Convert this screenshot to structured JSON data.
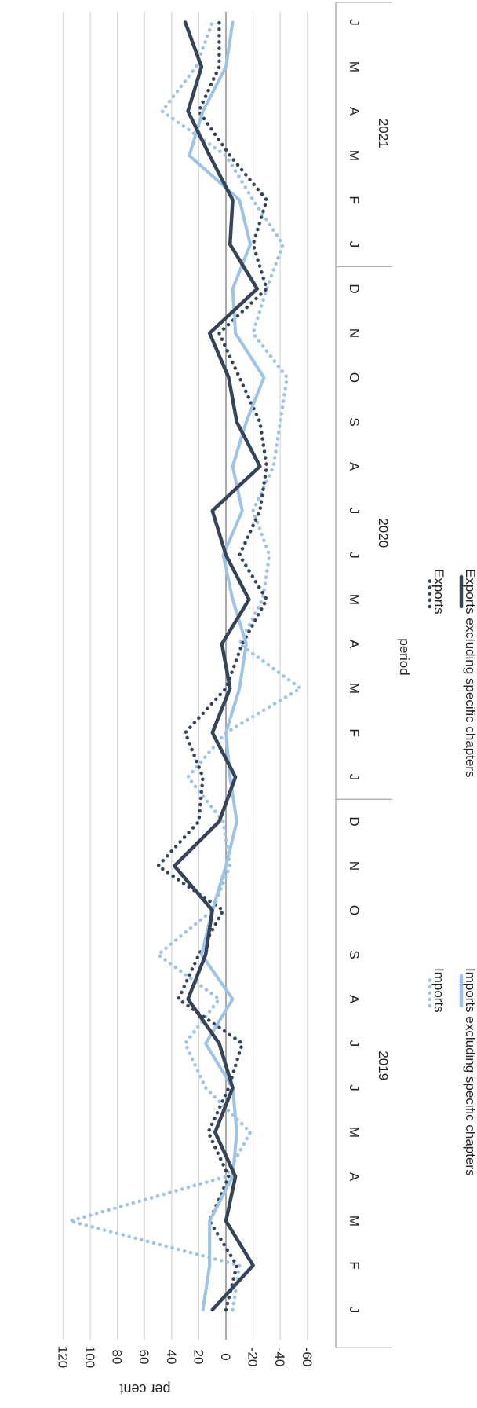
{
  "chart_data": {
    "type": "line",
    "orientation": "rotated-90-clockwise",
    "xlabel": "period",
    "ylabel": "per cent",
    "ylim": [
      -60,
      120
    ],
    "yticks": [
      -60,
      -40,
      -20,
      0,
      20,
      40,
      60,
      80,
      100,
      120
    ],
    "grid": true,
    "legend_position": "bottom",
    "months": [
      "J",
      "F",
      "M",
      "A",
      "M",
      "J",
      "J",
      "A",
      "S",
      "O",
      "N",
      "D",
      "J",
      "F",
      "M",
      "A",
      "M",
      "J",
      "J",
      "A",
      "S",
      "O",
      "N",
      "D",
      "J",
      "F",
      "M",
      "A",
      "M",
      "J"
    ],
    "years": [
      {
        "label": "2019",
        "start": 0,
        "end": 11
      },
      {
        "label": "2020",
        "start": 12,
        "end": 23
      },
      {
        "label": "2021",
        "start": 24,
        "end": 29
      }
    ],
    "series": [
      {
        "name": "Imports",
        "color": "#9dc3e6",
        "style": "dotted",
        "values": [
          -5,
          -10,
          115,
          0,
          -18,
          15,
          30,
          5,
          50,
          10,
          -3,
          2,
          28,
          0,
          -55,
          -10,
          -27,
          -32,
          -20,
          -35,
          -40,
          -45,
          -20,
          -30,
          -42,
          -20,
          0,
          47,
          22,
          10
        ]
      },
      {
        "name": "Exports",
        "color": "#354458",
        "style": "dotted",
        "values": [
          0,
          -8,
          12,
          -2,
          13,
          -2,
          -12,
          35,
          20,
          2,
          50,
          20,
          17,
          30,
          0,
          -12,
          -30,
          -10,
          -25,
          -30,
          -25,
          -10,
          5,
          -30,
          -20,
          -30,
          -3,
          20,
          5,
          5
        ]
      },
      {
        "name": "Imports excluding specific chapters",
        "color": "#9dc3e6",
        "style": "solid",
        "values": [
          17,
          12,
          12,
          -5,
          -8,
          -5,
          15,
          -5,
          18,
          10,
          0,
          -8,
          -3,
          0,
          -10,
          -15,
          -5,
          2,
          -12,
          -5,
          -15,
          -28,
          -7,
          -5,
          -18,
          -10,
          27,
          17,
          0,
          -5
        ]
      },
      {
        "name": "Exports excluding specific chapters",
        "color": "#354458",
        "style": "solid",
        "values": [
          10,
          -20,
          0,
          -7,
          8,
          -5,
          5,
          28,
          15,
          10,
          38,
          5,
          -7,
          10,
          -3,
          3,
          -17,
          0,
          10,
          -25,
          -8,
          -2,
          12,
          -23,
          -3,
          -5,
          12,
          28,
          18,
          30
        ]
      }
    ]
  }
}
